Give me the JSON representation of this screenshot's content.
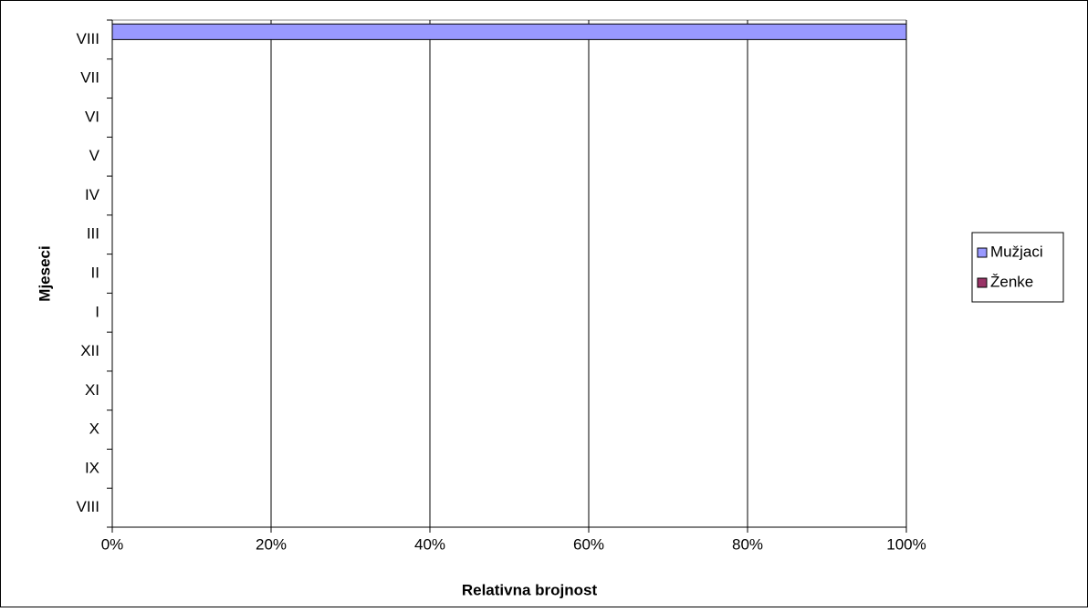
{
  "chart_data": {
    "type": "stacked-bar-horizontal",
    "x_label": "Relativna brojnost",
    "y_label": "Mjeseci",
    "categories": [
      "VIII",
      "IX",
      "X",
      "XI",
      "XII",
      "I",
      "II",
      "III",
      "IV",
      "V",
      "VI",
      "VII",
      "VIII"
    ],
    "series": [
      {
        "name": "Mužjaci",
        "color": "#9999ff",
        "values": [
          0,
          0,
          0,
          0,
          0,
          0,
          0,
          0,
          0,
          0,
          0,
          0,
          100
        ]
      },
      {
        "name": "Ženke",
        "color": "#993366",
        "values": [
          0,
          0,
          0,
          0,
          0,
          0,
          0,
          0,
          0,
          0,
          0,
          0,
          0
        ]
      }
    ],
    "xlim": [
      0,
      100
    ],
    "xticks": [
      {
        "value": 0,
        "label": "0%"
      },
      {
        "value": 20,
        "label": "20%"
      },
      {
        "value": 40,
        "label": "40%"
      },
      {
        "value": 60,
        "label": "60%"
      },
      {
        "value": 80,
        "label": "80%"
      },
      {
        "value": 100,
        "label": "100%"
      }
    ],
    "grid": true,
    "legend": "right"
  }
}
